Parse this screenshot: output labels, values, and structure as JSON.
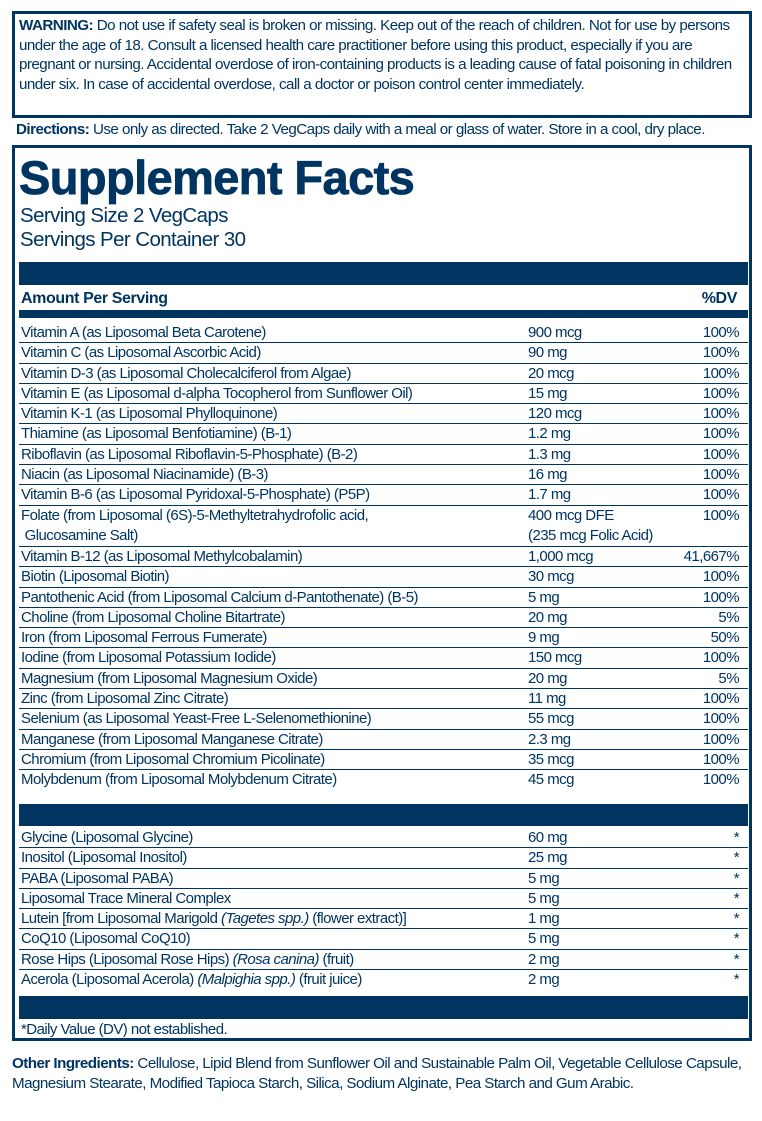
{
  "warning": {
    "label": "WARNING:",
    "text": " Do not use if safety seal is broken or missing. Keep out of the reach of children. Not for use by persons under the age of 18. Consult a licensed health care practitioner before using this product, especially if you are pregnant or nursing. Accidental overdose of iron-containing products is a leading cause of fatal poisoning in children under six. In case of accidental overdose, call a doctor or poison control center immediately."
  },
  "directions": {
    "label": "Directions:",
    "text": " Use only as directed. Take 2 VegCaps daily with a meal or glass of water. Store in a cool, dry place."
  },
  "facts": {
    "title": "Supplement Facts",
    "serving_size": "Serving Size 2 VegCaps",
    "servings_per_container": "Servings Per Container 30",
    "amount_header": "Amount Per Serving",
    "dv_header": "%DV",
    "footnote": "*Daily Value (DV) not established."
  },
  "vitamins": [
    {
      "name": "Vitamin A (as Liposomal Beta Carotene)",
      "amount": "900 mcg",
      "dv": "100%"
    },
    {
      "name": "Vitamin C (as Liposomal Ascorbic Acid)",
      "amount": "90 mg",
      "dv": "100%"
    },
    {
      "name": "Vitamin D-3 (as Liposomal Cholecalciferol from Algae)",
      "amount": "20 mcg",
      "dv": "100%"
    },
    {
      "name": "Vitamin E (as Liposomal d-alpha Tocopherol from Sunflower Oil)",
      "amount": "15 mg",
      "dv": "100%"
    },
    {
      "name": "Vitamin K-1 (as Liposomal Phylloquinone)",
      "amount": "120 mcg",
      "dv": "100%"
    },
    {
      "name": "Thiamine (as Liposomal Benfotiamine) (B-1)",
      "amount": "1.2 mg",
      "dv": "100%"
    },
    {
      "name": "Riboflavin (as Liposomal Riboflavin-5-Phosphate) (B-2)",
      "amount": "1.3 mg",
      "dv": "100%"
    },
    {
      "name": "Niacin (as Liposomal Niacinamide) (B-3)",
      "amount": "16 mg",
      "dv": "100%"
    },
    {
      "name": "Vitamin B-6 (as Liposomal Pyridoxal-5-Phosphate) (P5P)",
      "amount": "1.7 mg",
      "dv": "100%"
    },
    {
      "name": "Folate (from Liposomal (6S)-5-Methyltetrahydrofolic acid,",
      "name2": " Glucosamine Salt)",
      "amount": "400 mcg DFE",
      "amount2": "(235 mcg Folic Acid)",
      "dv": "100%"
    },
    {
      "name": "Vitamin B-12 (as Liposomal Methylcobalamin)",
      "amount": "1,000 mcg",
      "dv": "41,667%"
    },
    {
      "name": "Biotin (Liposomal Biotin)",
      "amount": "30 mcg",
      "dv": "100%"
    },
    {
      "name": "Pantothenic Acid (from Liposomal Calcium d-Pantothenate) (B-5)",
      "amount": "5 mg",
      "dv": "100%"
    },
    {
      "name": "Choline (from Liposomal Choline Bitartrate)",
      "amount": "20 mg",
      "dv": "5%"
    },
    {
      "name": "Iron (from Liposomal Ferrous Fumerate)",
      "amount": "9 mg",
      "dv": "50%"
    },
    {
      "name": "Iodine (from Liposomal Potassium Iodide)",
      "amount": "150 mcg",
      "dv": "100%"
    },
    {
      "name": "Magnesium (from Liposomal Magnesium Oxide)",
      "amount": "20 mg",
      "dv": "5%"
    },
    {
      "name": "Zinc (from Liposomal Zinc Citrate)",
      "amount": "11 mg",
      "dv": "100%"
    },
    {
      "name": "Selenium (as Liposomal Yeast-Free L-Selenomethionine)",
      "amount": "55 mcg",
      "dv": "100%"
    },
    {
      "name": "Manganese (from Liposomal Manganese Citrate)",
      "amount": "2.3 mg",
      "dv": "100%"
    },
    {
      "name": "Chromium (from Liposomal Chromium Picolinate)",
      "amount": "35 mcg",
      "dv": "100%"
    },
    {
      "name": "Molybdenum (from Liposomal Molybdenum Citrate)",
      "amount": "45 mcg",
      "dv": "100%"
    }
  ],
  "others": [
    {
      "name": "Glycine (Liposomal Glycine)",
      "amount": "60 mg",
      "dv": "*"
    },
    {
      "name": "Inositol (Liposomal Inositol)",
      "amount": "25 mg",
      "dv": "*"
    },
    {
      "name": "PABA (Liposomal PABA)",
      "amount": "5 mg",
      "dv": "*"
    },
    {
      "name": "Liposomal Trace Mineral Complex",
      "amount": "5 mg",
      "dv": "*"
    },
    {
      "name": "Lutein [from Liposomal Marigold ",
      "italic": "(Tagetes spp.)",
      "post": " (flower extract)]",
      "amount": "1 mg",
      "dv": "*"
    },
    {
      "name": "CoQ10 (Liposomal CoQ10)",
      "amount": "5 mg",
      "dv": "*"
    },
    {
      "name": "Rose Hips (Liposomal Rose Hips) ",
      "italic": "(Rosa canina)",
      "post": " (fruit)",
      "amount": "2 mg",
      "dv": "*"
    },
    {
      "name": "Acerola (Liposomal Acerola) ",
      "italic": "(Malpighia spp.)",
      "post": " (fruit juice)",
      "amount": "2 mg",
      "dv": "*"
    }
  ],
  "other_ingredients": {
    "label": "Other Ingredients:",
    "text": " Cellulose, Lipid Blend from Sunflower Oil and Sustainable Palm Oil, Vegetable Cellulose Capsule, Magnesium Stearate, Modified Tapioca Starch, Silica, Sodium Alginate, Pea Starch and Gum Arabic."
  },
  "colors": {
    "brand_navy": "#003461"
  }
}
